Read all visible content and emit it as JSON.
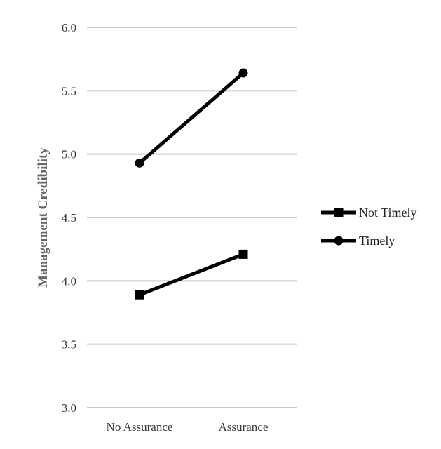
{
  "chart_data": {
    "type": "line",
    "title": "",
    "xlabel": "",
    "ylabel": "Management Credibility",
    "categories": [
      "No Assurance",
      "Assurance"
    ],
    "ylim": [
      3.0,
      6.0
    ],
    "y_ticks": [
      "3.0",
      "3.5",
      "4.0",
      "4.5",
      "5.0",
      "5.5",
      "6.0"
    ],
    "grid": true,
    "legend_position": "right",
    "series": [
      {
        "name": "Not Timely",
        "marker": "square",
        "color": "#000000",
        "values": [
          3.89,
          4.21
        ]
      },
      {
        "name": "Timely",
        "marker": "circle",
        "color": "#000000",
        "values": [
          4.93,
          5.64
        ]
      }
    ]
  }
}
